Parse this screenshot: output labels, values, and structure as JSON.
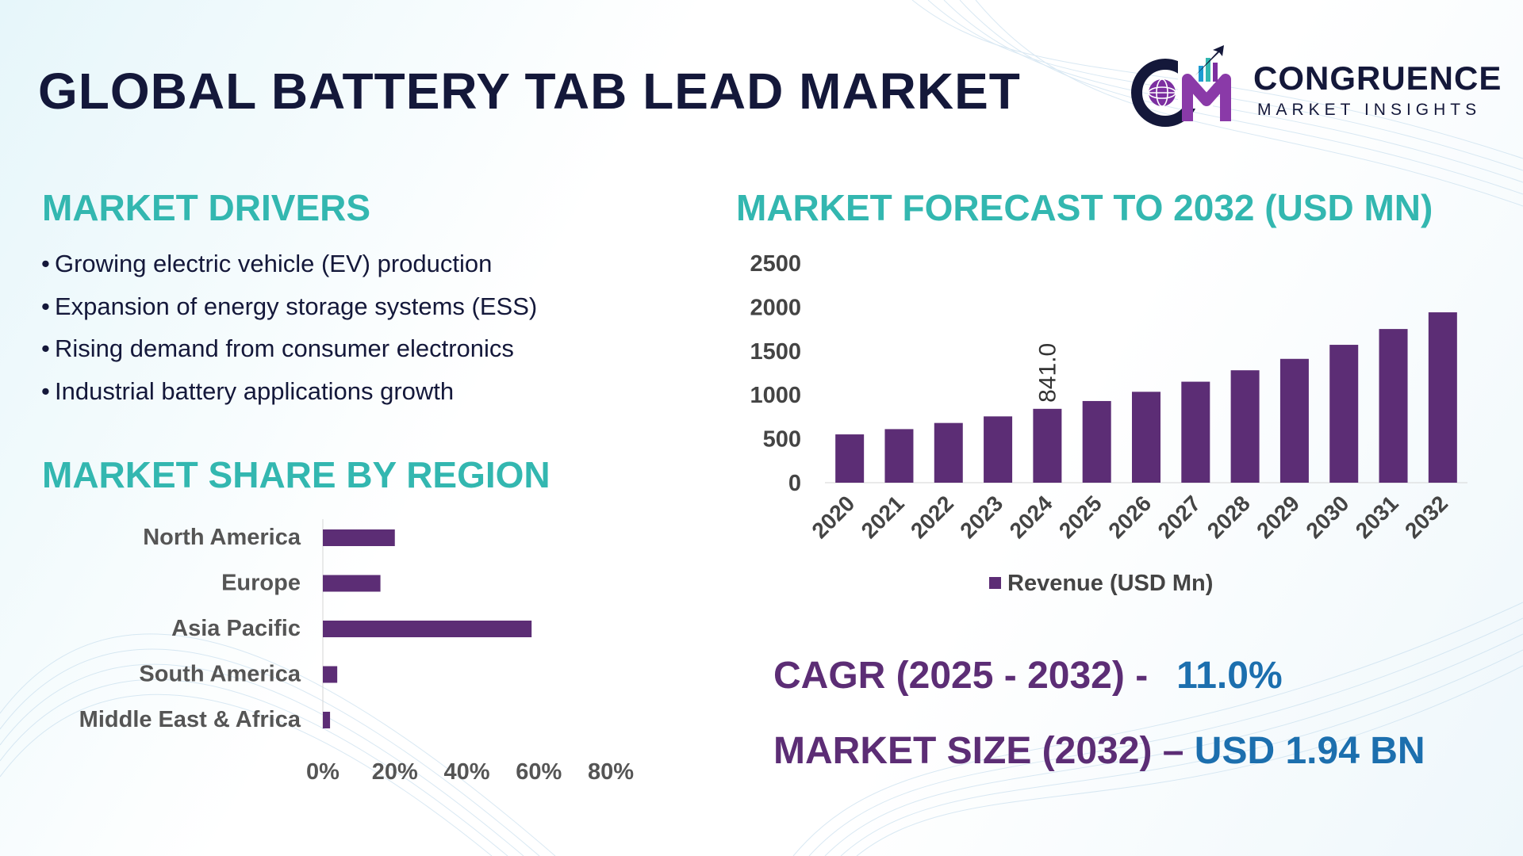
{
  "title": "GLOBAL BATTERY TAB LEAD MARKET",
  "logo": {
    "name": "CONGRUENCE",
    "subtitle": "MARKET INSIGHTS",
    "monogram": "CM"
  },
  "drivers": {
    "heading": "MARKET DRIVERS",
    "items": [
      "Growing electric vehicle (EV) production",
      "Expansion of energy storage systems (ESS)",
      "Rising demand from consumer electronics",
      "Industrial battery applications growth"
    ]
  },
  "region": {
    "heading": "MARKET SHARE BY REGION"
  },
  "forecast": {
    "heading": "MARKET FORECAST TO 2032 (USD MN)"
  },
  "stats": {
    "cagr_label": "CAGR (2025 - 2032) -",
    "cagr_value": "11.0%",
    "size_label": "MARKET SIZE (2032) –",
    "size_value": "USD 1.94 BN"
  },
  "colors": {
    "bar": "#5c2d75",
    "heading": "#33b7b0",
    "title": "#14183a",
    "accent": "#1c6fae"
  },
  "chart_data": [
    {
      "type": "bar",
      "orientation": "horizontal",
      "title": "MARKET SHARE BY REGION",
      "categories": [
        "North America",
        "Europe",
        "Asia Pacific",
        "South America",
        "Middle East & Africa"
      ],
      "values": [
        20,
        16,
        58,
        4,
        2
      ],
      "xlim": [
        0,
        80
      ],
      "xticks": [
        "0%",
        "20%",
        "40%",
        "60%",
        "80%"
      ]
    },
    {
      "type": "bar",
      "title": "MARKET FORECAST TO 2032 (USD MN)",
      "categories": [
        "2020",
        "2021",
        "2022",
        "2023",
        "2024",
        "2025",
        "2026",
        "2027",
        "2028",
        "2029",
        "2030",
        "2031",
        "2032"
      ],
      "values": [
        550,
        610,
        680,
        755,
        841.0,
        930,
        1035,
        1150,
        1280,
        1410,
        1570,
        1750,
        1940
      ],
      "data_labels": {
        "2024": "841.0"
      },
      "ylim": [
        0,
        2500
      ],
      "yticks": [
        "0",
        "500",
        "1000",
        "1500",
        "2000",
        "2500"
      ],
      "legend": "Revenue (USD Mn)"
    }
  ]
}
